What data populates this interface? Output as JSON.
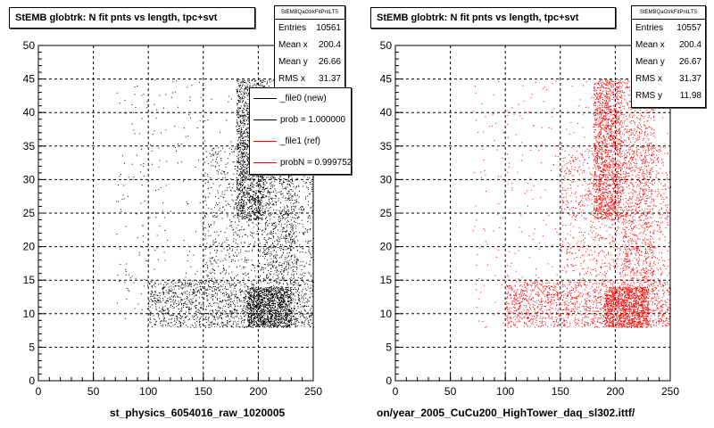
{
  "chart_data": [
    {
      "type": "scatter",
      "title": "StEMB globtrk: N fit pnts vs length, tpc+svt",
      "xlabel": "st_physics_6054016_raw_1020005",
      "ylabel": "",
      "xlim": [
        0,
        250
      ],
      "ylim": [
        0,
        50
      ],
      "x_ticks": [
        "0",
        "50",
        "100",
        "150",
        "200",
        "250"
      ],
      "y_ticks": [
        "0",
        "5",
        "10",
        "15",
        "20",
        "25",
        "30",
        "35",
        "40",
        "45",
        "50"
      ],
      "grid": true,
      "marker_color": "#000000",
      "stats": {
        "name": "StEMBQaGtrkFitPntLTS",
        "rows": [
          {
            "label": "Entries",
            "value": "10561"
          },
          {
            "label": "Mean x",
            "value": "200.4"
          },
          {
            "label": "Mean y",
            "value": "26.66"
          },
          {
            "label": "RMS x",
            "value": "31.37"
          }
        ]
      },
      "legend": {
        "placement": "top-right",
        "entries": [
          {
            "label": "_file0 (new)",
            "color": "#000000"
          },
          {
            "label": "prob = 1.000000",
            "color": "#000000"
          },
          {
            "label": "_file1 (ref)",
            "color": "#ff0000"
          },
          {
            "label": "probN = 0.999752",
            "color": "#ff0000"
          }
        ]
      },
      "clusters": [
        {
          "x": [
            100,
            250
          ],
          "y": [
            8,
            15
          ],
          "weight": 0.24
        },
        {
          "x": [
            190,
            230
          ],
          "y": [
            8,
            14
          ],
          "weight": 0.17
        },
        {
          "x": [
            180,
            205
          ],
          "y": [
            24,
            45
          ],
          "weight": 0.24
        },
        {
          "x": [
            205,
            235
          ],
          "y": [
            15,
            45
          ],
          "weight": 0.13
        },
        {
          "x": [
            150,
            250
          ],
          "y": [
            15,
            35
          ],
          "weight": 0.15
        },
        {
          "x": [
            70,
            250
          ],
          "y": [
            8,
            45
          ],
          "weight": 0.07
        }
      ],
      "total_entries": 10561
    },
    {
      "type": "scatter",
      "title": "StEMB globtrk: N fit pnts vs length, tpc+svt",
      "xlabel": "on/year_2005_CuCu200_HighTower_daq_sl302.ittf/",
      "ylabel": "",
      "xlim": [
        0,
        250
      ],
      "ylim": [
        0,
        50
      ],
      "x_ticks": [
        "0",
        "50",
        "100",
        "150",
        "200",
        "250"
      ],
      "y_ticks": [
        "0",
        "5",
        "10",
        "15",
        "20",
        "25",
        "30",
        "35",
        "40",
        "45",
        "50"
      ],
      "grid": true,
      "marker_color": "#ff0000",
      "stats": {
        "name": "StEMBQaGtrkFitPntLTS",
        "rows": [
          {
            "label": "Entries",
            "value": "10557"
          },
          {
            "label": "Mean x",
            "value": "200.4"
          },
          {
            "label": "Mean y",
            "value": "26.67"
          },
          {
            "label": "RMS x",
            "value": "31.37"
          },
          {
            "label": "RMS y",
            "value": "11.98"
          }
        ]
      },
      "clusters": [
        {
          "x": [
            100,
            250
          ],
          "y": [
            8,
            15
          ],
          "weight": 0.24
        },
        {
          "x": [
            190,
            230
          ],
          "y": [
            8,
            14
          ],
          "weight": 0.17
        },
        {
          "x": [
            180,
            205
          ],
          "y": [
            24,
            45
          ],
          "weight": 0.24
        },
        {
          "x": [
            205,
            235
          ],
          "y": [
            15,
            45
          ],
          "weight": 0.13
        },
        {
          "x": [
            150,
            250
          ],
          "y": [
            15,
            35
          ],
          "weight": 0.15
        },
        {
          "x": [
            70,
            250
          ],
          "y": [
            8,
            45
          ],
          "weight": 0.07
        }
      ],
      "total_entries": 10557
    }
  ]
}
